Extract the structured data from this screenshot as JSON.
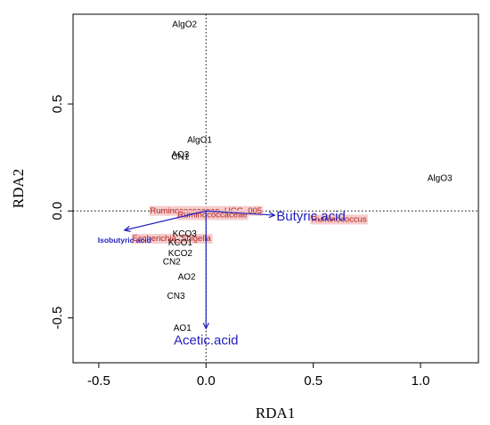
{
  "chart_data": {
    "type": "scatter",
    "title": "",
    "xlabel": "RDA1",
    "ylabel": "RDA2",
    "xlim": [
      -0.62,
      1.27
    ],
    "ylim": [
      -0.71,
      0.92
    ],
    "x_ticks": [
      -0.5,
      0.0,
      0.5,
      1.0
    ],
    "x_tick_labels": [
      "-0.5",
      "0.0",
      "0.5",
      "1.0"
    ],
    "y_ticks": [
      -0.5,
      0.0,
      0.5
    ],
    "y_tick_labels": [
      "-0.5",
      "0.0",
      "0.5"
    ],
    "reference_lines": {
      "x": 0,
      "y": 0,
      "style": "dotted"
    },
    "sites": [
      {
        "label": "AlgO2",
        "x": -0.1,
        "y": 0.87
      },
      {
        "label": "AlgO1",
        "x": -0.03,
        "y": 0.33
      },
      {
        "label": "AO3",
        "x": -0.12,
        "y": 0.26
      },
      {
        "label": "CN1",
        "x": -0.12,
        "y": 0.25
      },
      {
        "label": "AlgO3",
        "x": 1.09,
        "y": 0.15
      },
      {
        "label": "KCO3",
        "x": -0.1,
        "y": -0.11
      },
      {
        "label": "KCO1",
        "x": -0.12,
        "y": -0.15
      },
      {
        "label": "KCO2",
        "x": -0.12,
        "y": -0.2
      },
      {
        "label": "CN2",
        "x": -0.16,
        "y": -0.24
      },
      {
        "label": "AO2",
        "x": -0.09,
        "y": -0.31
      },
      {
        "label": "CN3",
        "x": -0.14,
        "y": -0.4
      },
      {
        "label": "AO1",
        "x": -0.11,
        "y": -0.55
      }
    ],
    "taxa": [
      {
        "label": "Ruminococcaceae_UCG_005",
        "x": 0.0,
        "y": 0.0
      },
      {
        "label": "Ruminococcaceae",
        "x": 0.03,
        "y": -0.02
      },
      {
        "label": "Escherichia_Shigella",
        "x": -0.16,
        "y": -0.13
      },
      {
        "label": "Ruminococcus",
        "x": 0.62,
        "y": -0.04
      }
    ],
    "env_vectors": [
      {
        "label": "Butyric.acid",
        "x": 0.32,
        "y": -0.02,
        "font_size": 15
      },
      {
        "label": "Isobutyric acid",
        "x": -0.38,
        "y": -0.09,
        "font_size": 8.5
      },
      {
        "label": "Acetic.acid",
        "x": 0.0,
        "y": -0.55,
        "font_size": 15
      }
    ],
    "colors": {
      "sites": "#000000",
      "taxa": "#b22222",
      "taxa_highlight": "#f4c4c4",
      "vectors": "#1f1fbf"
    }
  }
}
